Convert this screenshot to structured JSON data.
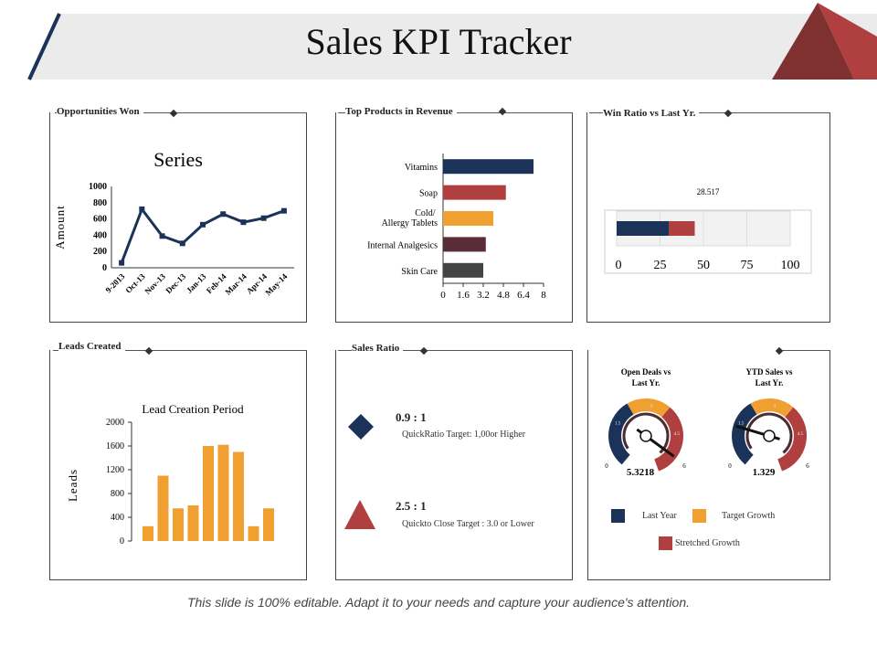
{
  "header": {
    "title": "Sales KPI Tracker"
  },
  "colors": {
    "navy": "#1b3358",
    "red": "#b04040",
    "orange": "#f0a030",
    "maroon": "#5a2c35",
    "gray": "#444444",
    "header_band": "#ebebeb",
    "triangle_dark": "#7f3031"
  },
  "panels": {
    "opportunities": {
      "title": "Opportunities Won"
    },
    "top_products": {
      "title": "Top Products in Revenue"
    },
    "win_ratio": {
      "title": "Win Ratio vs Last Yr."
    },
    "leads": {
      "title": "Leads Created"
    },
    "sales_ratio": {
      "title": "Sales Ratio",
      "items": [
        {
          "icon": "diamond-icon",
          "value": "0.9 : 1",
          "desc": "QuickRatio Target: 1,00or Higher"
        },
        {
          "icon": "triangle-icon",
          "value": "2.5 : 1",
          "desc": "Quickto Close Target : 3.0 or Lower"
        }
      ]
    },
    "gauges": {
      "legend": [
        "Last Year",
        "Target Growth",
        "Stretched Growth"
      ]
    }
  },
  "chart_data": [
    {
      "type": "line",
      "title": "Series",
      "ylabel": "Amount",
      "ylim": [
        0,
        1000
      ],
      "yticks": [
        0,
        200,
        400,
        600,
        800,
        1000
      ],
      "categories": [
        "9-2013",
        "Oct-13",
        "Nov-13",
        "Dec-13",
        "Jan-13",
        "Feb-14",
        "Mar-14",
        "Apr-14",
        "May-14"
      ],
      "values": [
        60,
        720,
        390,
        300,
        530,
        660,
        560,
        610,
        700
      ]
    },
    {
      "type": "bar",
      "orientation": "horizontal",
      "xlim": [
        0,
        8
      ],
      "xticks": [
        "0",
        "1.6",
        "3.2",
        "4.8",
        "6.4",
        "8"
      ],
      "categories": [
        "Vitamins",
        "Soap",
        "Cold/ Allergy Tablets",
        "Internal Analgesics",
        "Skin Care"
      ],
      "values": [
        7.2,
        5.0,
        4.0,
        3.4,
        3.2
      ],
      "colors": [
        "#1b3358",
        "#b04040",
        "#f0a030",
        "#5a2c35",
        "#444444"
      ]
    },
    {
      "type": "bar",
      "orientation": "horizontal",
      "stacked": true,
      "xlim": [
        0,
        100
      ],
      "xticks": [
        "0",
        "25",
        "50",
        "75",
        "100"
      ],
      "label": "28.517",
      "values": [
        30,
        15
      ],
      "colors": [
        "#1b3358",
        "#b04040"
      ]
    },
    {
      "type": "bar",
      "title": "Lead Creation Period",
      "ylabel": "Leads",
      "ylim": [
        0,
        2000
      ],
      "yticks": [
        "0",
        "400",
        "800",
        "1200",
        "1600",
        "2000"
      ],
      "values": [
        250,
        1100,
        550,
        600,
        1600,
        1620,
        1500,
        250,
        550
      ]
    },
    {
      "type": "gauge",
      "title": "Open Deals vs Last Yr.",
      "min": "0",
      "max": "6",
      "value": 5.3218,
      "value_label": "5.3218",
      "band_labels": [
        "1.5",
        "3",
        "4.5"
      ]
    },
    {
      "type": "gauge",
      "title": "YTD Sales vs Last Yr.",
      "min": "0",
      "max": "6",
      "value": 1.329,
      "value_label": "1.329",
      "band_labels": [
        "1.5",
        "3",
        "4.5"
      ]
    }
  ]
}
